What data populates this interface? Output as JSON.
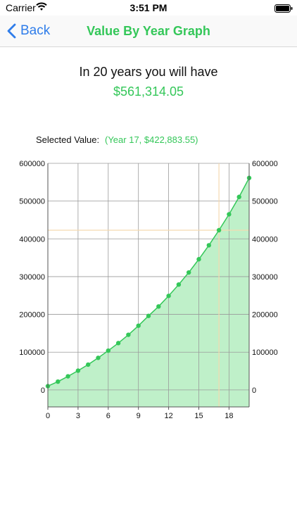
{
  "status_bar": {
    "carrier": "Carrier",
    "time": "3:51 PM",
    "wifi_icon": "wifi-icon",
    "battery_icon": "battery-icon"
  },
  "nav": {
    "back_label": "Back",
    "back_icon": "chevron-left-icon",
    "title": "Value By Year Graph"
  },
  "summary": {
    "headline": "In 20 years you will have",
    "total_value": "$561,314.05"
  },
  "selection": {
    "label": "Selected Value:",
    "value": "(Year 17, $422,883.55)"
  },
  "colors": {
    "accent_green": "#34c759",
    "fill_green": "#bff0c9",
    "link_blue": "#2f7dea",
    "crosshair": "#f5d9b0"
  },
  "chart_data": {
    "type": "area",
    "x": [
      0,
      1,
      2,
      3,
      4,
      5,
      6,
      7,
      8,
      9,
      10,
      11,
      12,
      13,
      14,
      15,
      16,
      17,
      18,
      19,
      20
    ],
    "values": [
      10000,
      22000,
      36000,
      51000,
      67000,
      85000,
      104000,
      124000,
      146000,
      170000,
      196000,
      221000,
      249000,
      279000,
      311000,
      346000,
      383000,
      422883.55,
      465000,
      511000,
      561314.05
    ],
    "xlim": [
      0,
      20
    ],
    "ylim": [
      -45000,
      600000
    ],
    "x_ticks": [
      0,
      3,
      6,
      9,
      12,
      15,
      18
    ],
    "y_ticks": [
      0,
      100000,
      200000,
      300000,
      400000,
      500000,
      600000
    ],
    "x_tick_labels": [
      "0",
      "3",
      "6",
      "9",
      "12",
      "15",
      "18"
    ],
    "y_tick_labels": [
      "0",
      "100000",
      "200000",
      "300000",
      "400000",
      "500000",
      "600000"
    ],
    "selected_point": {
      "x": 17,
      "y": 422883.55
    },
    "grid": true,
    "right_axis_labels": true
  }
}
